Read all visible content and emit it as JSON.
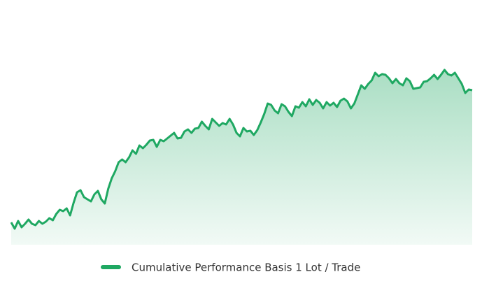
{
  "chart_data": {
    "type": "area",
    "series": [
      {
        "name": "Cumulative Performance Basis 1 Lot / Trade",
        "color": "#1fa862",
        "values": [
          32,
          23,
          34,
          25,
          30,
          36,
          30,
          28,
          34,
          30,
          33,
          38,
          35,
          44,
          50,
          48,
          52,
          42,
          60,
          75,
          78,
          68,
          65,
          62,
          72,
          77,
          65,
          59,
          80,
          95,
          105,
          118,
          122,
          118,
          125,
          135,
          130,
          142,
          138,
          143,
          149,
          150,
          140,
          150,
          148,
          152,
          156,
          160,
          152,
          153,
          162,
          165,
          160,
          166,
          167,
          176,
          170,
          165,
          180,
          175,
          170,
          174,
          172,
          180,
          172,
          160,
          155,
          167,
          162,
          163,
          157,
          164,
          175,
          187,
          202,
          200,
          192,
          188,
          201,
          198,
          190,
          184,
          198,
          196,
          204,
          198,
          208,
          200,
          207,
          203,
          195,
          204,
          199,
          203,
          197,
          206,
          209,
          205,
          195,
          202,
          215,
          228,
          223,
          230,
          235,
          246,
          241,
          244,
          243,
          238,
          231,
          237,
          231,
          228,
          238,
          234,
          223,
          224,
          225,
          233,
          234,
          238,
          243,
          237,
          243,
          250,
          244,
          242,
          246,
          238,
          230,
          217,
          222,
          221
        ]
      }
    ],
    "ylim": [
      0,
      260
    ],
    "grid": false,
    "legend": "bottom"
  }
}
